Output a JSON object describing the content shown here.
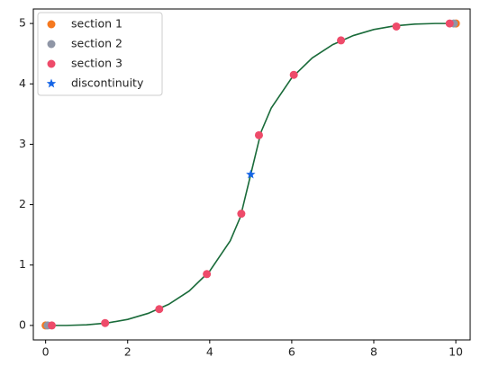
{
  "chart_data": {
    "type": "line",
    "series": [
      {
        "color": "#1a6b3a",
        "style": "line",
        "x": [
          0,
          0.5,
          1,
          1.5,
          2,
          2.5,
          3,
          3.5,
          4,
          4.5,
          4.75,
          5,
          5.25,
          5.5,
          6,
          6.5,
          7,
          7.5,
          8,
          8.5,
          9,
          9.5,
          10
        ],
        "values": [
          0,
          0,
          0.01,
          0.04,
          0.1,
          0.2,
          0.35,
          0.57,
          0.9,
          1.4,
          1.8,
          2.5,
          3.2,
          3.6,
          4.1,
          4.43,
          4.65,
          4.8,
          4.9,
          4.96,
          4.99,
          5,
          5
        ]
      },
      {
        "name": "section 1",
        "color": "#f5791f",
        "style": "marker",
        "marker": "circle",
        "x": [
          0,
          10
        ],
        "values": [
          0,
          5
        ]
      },
      {
        "name": "section 2",
        "color": "#8f96a6",
        "style": "marker",
        "marker": "circle",
        "x": [
          0.05,
          9.95
        ],
        "values": [
          0,
          5
        ]
      },
      {
        "name": "section 3",
        "color": "#ee4b6a",
        "style": "marker",
        "marker": "circle",
        "x": [
          0.15,
          1.45,
          2.77,
          3.93,
          4.77,
          5.2,
          6.05,
          7.2,
          8.55,
          9.85
        ],
        "values": [
          0,
          0.04,
          0.27,
          0.85,
          1.85,
          3.15,
          4.15,
          4.72,
          4.95,
          5
        ]
      },
      {
        "name": "discontinuity",
        "color": "#1565e6",
        "style": "marker",
        "marker": "star",
        "x": [
          5
        ],
        "values": [
          2.5
        ]
      }
    ],
    "xlim": [
      -0.3,
      10.35
    ],
    "ylim": [
      -0.24,
      5.24
    ],
    "xticks": [
      0,
      2,
      4,
      6,
      8,
      10
    ],
    "yticks": [
      0,
      1,
      2,
      3,
      4,
      5
    ],
    "legend": "upper-left"
  }
}
